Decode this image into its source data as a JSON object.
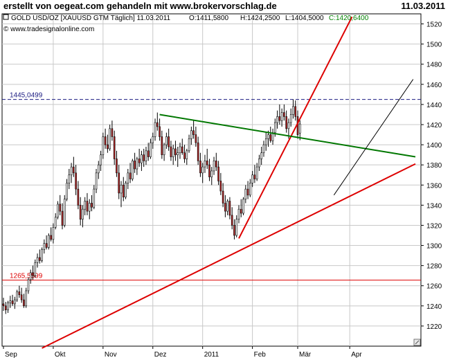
{
  "header": {
    "title": "erstellt von oegeat.com gehandeln mit www.brokervorschlag.de",
    "date": "11.03.2011"
  },
  "chart_data": {
    "type": "candlestick",
    "instrument_line": {
      "name": "GOLD USD/OZ [XAUUSD GTM  Täglich] 11.03.2011",
      "open": "O:1411,5800",
      "high": "H:1424,2500",
      "low": "L:1404,5000",
      "close": "C:1420,6400"
    },
    "copyright": "© www.tradesignalonline.com",
    "colors": {
      "up": "#ffffff",
      "down": "#b22222",
      "wick": "#000000",
      "resistance_line": "#1a1a80",
      "support_line": "#dd0000",
      "trend_red": "#dd0000",
      "trend_green": "#007700",
      "close_value": "#008000"
    },
    "y_axis": {
      "min": 1200,
      "max": 1530,
      "ticks": [
        1220,
        1240,
        1260,
        1280,
        1300,
        1320,
        1340,
        1360,
        1380,
        1400,
        1420,
        1440,
        1460,
        1480,
        1500,
        1520
      ]
    },
    "x_axis": {
      "labels": [
        {
          "text": "Sep",
          "day": 0
        },
        {
          "text": "Okt",
          "day": 22
        },
        {
          "text": "Nov",
          "day": 44
        },
        {
          "text": "Dez",
          "day": 66
        },
        {
          "text": "2011",
          "day": 88
        },
        {
          "text": "Feb",
          "day": 110
        },
        {
          "text": "Mär",
          "day": 130
        },
        {
          "text": "Apr",
          "day": 153
        }
      ],
      "grid_days": [
        22,
        44,
        66,
        88,
        110,
        130,
        153
      ]
    },
    "horizontal_levels": [
      {
        "label": "1445,0499",
        "value": 1445.05,
        "style": "dashed",
        "color": "#1a1a80"
      },
      {
        "label": "1265,5599",
        "value": 1265.56,
        "style": "solid",
        "color": "#dd0000"
      }
    ],
    "trendlines": [
      {
        "name": "long-support",
        "color": "#dd0000",
        "width": 2,
        "from": {
          "day": 17,
          "value": 1198
        },
        "to": {
          "day": 182,
          "value": 1381
        }
      },
      {
        "name": "steep-support",
        "color": "#dd0000",
        "width": 2,
        "from": {
          "day": 104,
          "value": 1307
        },
        "to": {
          "day": 154,
          "value": 1527
        }
      },
      {
        "name": "falling-resistance",
        "color": "#007700",
        "width": 2,
        "from": {
          "day": 69,
          "value": 1430
        },
        "to": {
          "day": 182,
          "value": 1388
        }
      },
      {
        "name": "projection",
        "color": "#000000",
        "width": 1,
        "from": {
          "day": 146,
          "value": 1350
        },
        "to": {
          "day": 181,
          "value": 1465
        }
      }
    ],
    "candles": [
      [
        1242,
        1248,
        1235,
        1240
      ],
      [
        1240,
        1244,
        1232,
        1236
      ],
      [
        1236,
        1245,
        1233,
        1243
      ],
      [
        1243,
        1250,
        1238,
        1245
      ],
      [
        1245,
        1251,
        1240,
        1242
      ],
      [
        1242,
        1249,
        1237,
        1246
      ],
      [
        1246,
        1256,
        1244,
        1254
      ],
      [
        1254,
        1260,
        1248,
        1251
      ],
      [
        1251,
        1258,
        1243,
        1246
      ],
      [
        1246,
        1252,
        1238,
        1240
      ],
      [
        1240,
        1258,
        1238,
        1255
      ],
      [
        1255,
        1268,
        1252,
        1266
      ],
      [
        1266,
        1276,
        1262,
        1273
      ],
      [
        1273,
        1280,
        1266,
        1270
      ],
      [
        1270,
        1286,
        1268,
        1283
      ],
      [
        1283,
        1292,
        1278,
        1288
      ],
      [
        1288,
        1296,
        1282,
        1285
      ],
      [
        1285,
        1298,
        1283,
        1296
      ],
      [
        1296,
        1306,
        1292,
        1302
      ],
      [
        1302,
        1310,
        1296,
        1298
      ],
      [
        1298,
        1312,
        1296,
        1310
      ],
      [
        1310,
        1318,
        1304,
        1306
      ],
      [
        1306,
        1322,
        1302,
        1318
      ],
      [
        1318,
        1332,
        1316,
        1328
      ],
      [
        1328,
        1344,
        1326,
        1341
      ],
      [
        1341,
        1350,
        1330,
        1334
      ],
      [
        1334,
        1342,
        1316,
        1320
      ],
      [
        1320,
        1350,
        1318,
        1346
      ],
      [
        1346,
        1366,
        1344,
        1362
      ],
      [
        1362,
        1376,
        1356,
        1370
      ],
      [
        1370,
        1382,
        1362,
        1378
      ],
      [
        1378,
        1388,
        1368,
        1372
      ],
      [
        1372,
        1380,
        1350,
        1356
      ],
      [
        1356,
        1364,
        1336,
        1340
      ],
      [
        1340,
        1348,
        1320,
        1326
      ],
      [
        1326,
        1340,
        1318,
        1336
      ],
      [
        1336,
        1348,
        1330,
        1344
      ],
      [
        1344,
        1352,
        1330,
        1334
      ],
      [
        1334,
        1346,
        1326,
        1342
      ],
      [
        1342,
        1350,
        1334,
        1338
      ],
      [
        1338,
        1360,
        1336,
        1356
      ],
      [
        1356,
        1376,
        1352,
        1372
      ],
      [
        1372,
        1384,
        1366,
        1380
      ],
      [
        1380,
        1394,
        1374,
        1390
      ],
      [
        1390,
        1412,
        1386,
        1408
      ],
      [
        1408,
        1416,
        1396,
        1400
      ],
      [
        1400,
        1410,
        1392,
        1396
      ],
      [
        1396,
        1420,
        1394,
        1416
      ],
      [
        1416,
        1424,
        1404,
        1408
      ],
      [
        1408,
        1414,
        1380,
        1386
      ],
      [
        1386,
        1394,
        1368,
        1372
      ],
      [
        1372,
        1380,
        1346,
        1352
      ],
      [
        1352,
        1364,
        1338,
        1360
      ],
      [
        1360,
        1368,
        1344,
        1348
      ],
      [
        1348,
        1364,
        1346,
        1362
      ],
      [
        1362,
        1376,
        1356,
        1372
      ],
      [
        1372,
        1382,
        1362,
        1366
      ],
      [
        1366,
        1386,
        1364,
        1384
      ],
      [
        1384,
        1392,
        1372,
        1376
      ],
      [
        1376,
        1388,
        1370,
        1386
      ],
      [
        1386,
        1396,
        1378,
        1382
      ],
      [
        1382,
        1394,
        1374,
        1390
      ],
      [
        1390,
        1396,
        1378,
        1384
      ],
      [
        1384,
        1398,
        1380,
        1394
      ],
      [
        1394,
        1402,
        1384,
        1388
      ],
      [
        1388,
        1406,
        1386,
        1402
      ],
      [
        1402,
        1412,
        1396,
        1408
      ],
      [
        1408,
        1426,
        1404,
        1422
      ],
      [
        1422,
        1432,
        1414,
        1418
      ],
      [
        1418,
        1426,
        1404,
        1408
      ],
      [
        1408,
        1414,
        1386,
        1390
      ],
      [
        1390,
        1402,
        1384,
        1400
      ],
      [
        1400,
        1412,
        1396,
        1408
      ],
      [
        1408,
        1416,
        1394,
        1398
      ],
      [
        1398,
        1404,
        1384,
        1388
      ],
      [
        1388,
        1400,
        1380,
        1396
      ],
      [
        1396,
        1404,
        1384,
        1390
      ],
      [
        1390,
        1398,
        1378,
        1392
      ],
      [
        1392,
        1402,
        1386,
        1398
      ],
      [
        1398,
        1406,
        1390,
        1392
      ],
      [
        1392,
        1400,
        1382,
        1386
      ],
      [
        1386,
        1396,
        1380,
        1394
      ],
      [
        1394,
        1410,
        1392,
        1406
      ],
      [
        1406,
        1418,
        1400,
        1414
      ],
      [
        1414,
        1424,
        1406,
        1410
      ],
      [
        1410,
        1418,
        1398,
        1402
      ],
      [
        1402,
        1408,
        1380,
        1384
      ],
      [
        1384,
        1392,
        1368,
        1372
      ],
      [
        1372,
        1382,
        1362,
        1378
      ],
      [
        1378,
        1390,
        1372,
        1384
      ],
      [
        1384,
        1396,
        1376,
        1380
      ],
      [
        1380,
        1386,
        1364,
        1368
      ],
      [
        1368,
        1378,
        1360,
        1374
      ],
      [
        1374,
        1388,
        1370,
        1384
      ],
      [
        1384,
        1392,
        1374,
        1378
      ],
      [
        1378,
        1384,
        1360,
        1364
      ],
      [
        1364,
        1372,
        1350,
        1354
      ],
      [
        1354,
        1362,
        1338,
        1342
      ],
      [
        1342,
        1350,
        1328,
        1334
      ],
      [
        1334,
        1346,
        1330,
        1344
      ],
      [
        1344,
        1348,
        1326,
        1330
      ],
      [
        1330,
        1338,
        1316,
        1320
      ],
      [
        1320,
        1326,
        1306,
        1310
      ],
      [
        1310,
        1330,
        1308,
        1326
      ],
      [
        1326,
        1340,
        1322,
        1336
      ],
      [
        1336,
        1346,
        1328,
        1332
      ],
      [
        1332,
        1348,
        1330,
        1346
      ],
      [
        1346,
        1360,
        1342,
        1356
      ],
      [
        1356,
        1364,
        1346,
        1350
      ],
      [
        1350,
        1366,
        1348,
        1362
      ],
      [
        1362,
        1374,
        1358,
        1370
      ],
      [
        1370,
        1380,
        1362,
        1366
      ],
      [
        1366,
        1382,
        1364,
        1378
      ],
      [
        1378,
        1390,
        1374,
        1386
      ],
      [
        1386,
        1398,
        1380,
        1392
      ],
      [
        1392,
        1404,
        1388,
        1400
      ],
      [
        1400,
        1412,
        1394,
        1406
      ],
      [
        1406,
        1414,
        1398,
        1410
      ],
      [
        1410,
        1418,
        1402,
        1404
      ],
      [
        1404,
        1416,
        1400,
        1412
      ],
      [
        1412,
        1426,
        1408,
        1422
      ],
      [
        1422,
        1434,
        1416,
        1428
      ],
      [
        1428,
        1440,
        1420,
        1424
      ],
      [
        1424,
        1436,
        1418,
        1432
      ],
      [
        1432,
        1440,
        1424,
        1428
      ],
      [
        1428,
        1434,
        1412,
        1416
      ],
      [
        1416,
        1426,
        1406,
        1422
      ],
      [
        1422,
        1436,
        1418,
        1430
      ],
      [
        1430,
        1445,
        1426,
        1438
      ],
      [
        1438,
        1444,
        1424,
        1428
      ],
      [
        1428,
        1434,
        1406,
        1410
      ],
      [
        1411.58,
        1424.25,
        1404.5,
        1420.64
      ]
    ]
  }
}
